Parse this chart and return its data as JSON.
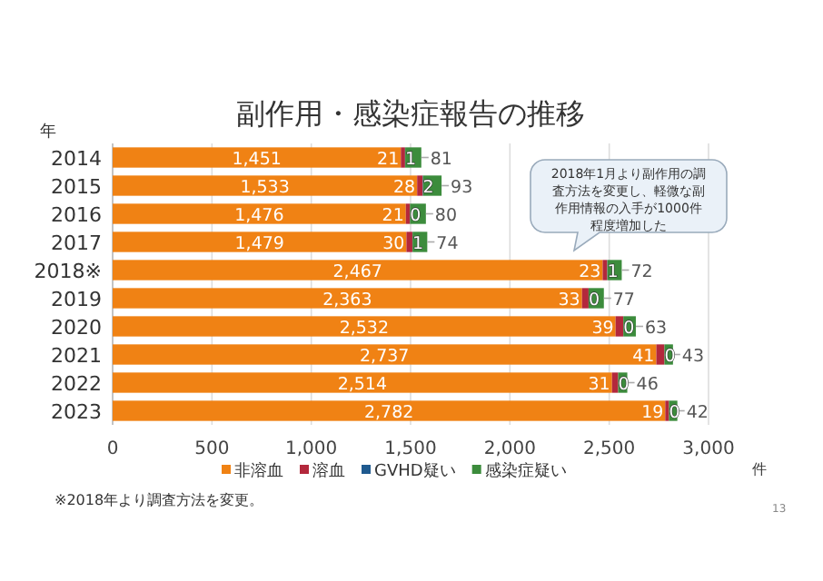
{
  "chart_data": {
    "type": "bar",
    "orientation": "horizontal",
    "stacked": true,
    "title": "副作用・感染症報告の推移",
    "ylabel": "年",
    "xlabel": "件",
    "categories": [
      "2014",
      "2015",
      "2016",
      "2017",
      "2018※",
      "2019",
      "2020",
      "2021",
      "2022",
      "2023"
    ],
    "series": [
      {
        "name": "非溶血",
        "color": "#f08214",
        "values": [
          1451,
          1533,
          1476,
          1479,
          2467,
          2363,
          2532,
          2737,
          2514,
          2782
        ],
        "value_labels": [
          "1,451",
          "1,533",
          "1,476",
          "1,479",
          "2,467",
          "2,363",
          "2,532",
          "2,737",
          "2,514",
          "2,782"
        ]
      },
      {
        "name": "溶血",
        "color": "#b3283c",
        "values": [
          21,
          28,
          21,
          30,
          23,
          33,
          39,
          41,
          31,
          19
        ],
        "value_labels": [
          "21",
          "28",
          "21",
          "30",
          "23",
          "33",
          "39",
          "41",
          "31",
          "19"
        ]
      },
      {
        "name": "GVHD疑い",
        "color": "#1f5a8f",
        "values": [
          1,
          2,
          0,
          1,
          1,
          0,
          0,
          0,
          0,
          0
        ],
        "value_labels": [
          "1",
          "2",
          "0",
          "1",
          "1",
          "0",
          "0",
          "0",
          "0",
          "0"
        ]
      },
      {
        "name": "感染症疑い",
        "color": "#3c8c3c",
        "values": [
          81,
          93,
          80,
          74,
          72,
          77,
          63,
          43,
          46,
          42
        ],
        "value_labels": [
          "81",
          "93",
          "80",
          "74",
          "72",
          "77",
          "63",
          "43",
          "46",
          "42"
        ]
      }
    ],
    "xlim": [
      0,
      3000
    ],
    "xticks": [
      0,
      {
        "value": 500,
        "label": "500"
      },
      {
        "value": 1000,
        "label": "1,000"
      },
      {
        "value": 1500,
        "label": "1,500"
      },
      {
        "value": 2000,
        "label": "2,000"
      },
      {
        "value": 2500,
        "label": "2,500"
      },
      {
        "value": 3000,
        "label": "3,000"
      }
    ],
    "grid": "x",
    "legend": "bottom",
    "annotations": [
      "2018年1月より副作用の調査方法を変更し、軽微な副作用情報の入手が1000件程度増加した",
      "※2018年より調査方法を変更。",
      "13"
    ]
  }
}
